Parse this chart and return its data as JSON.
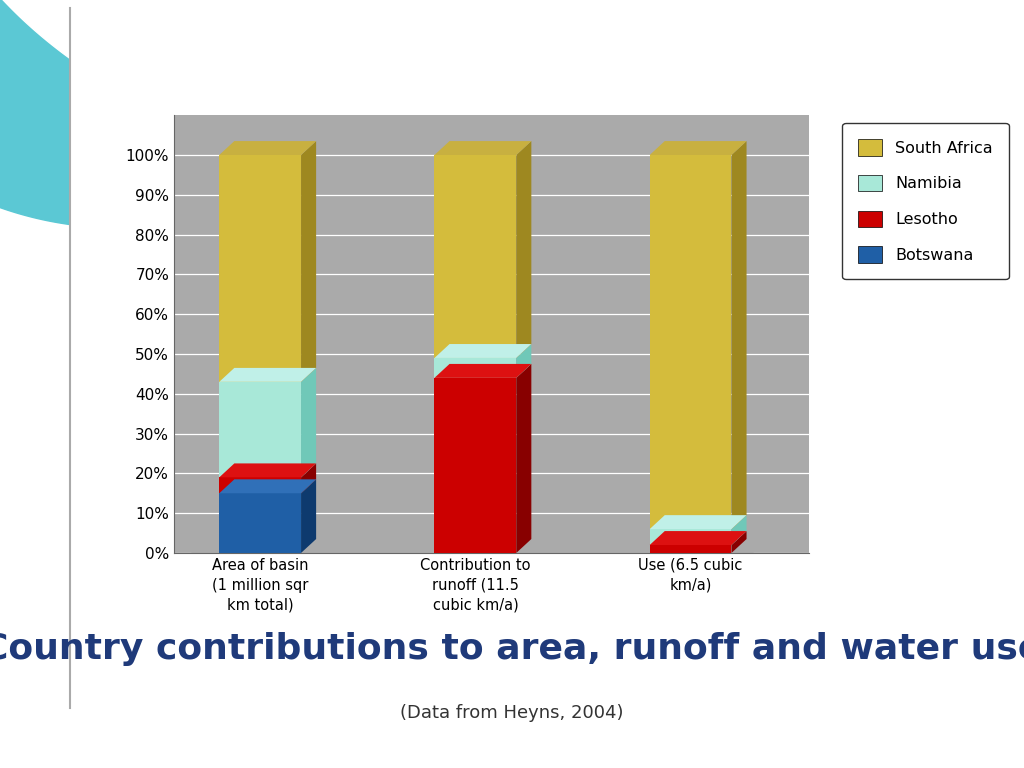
{
  "categories": [
    "Area of basin\n(1 million sqr\nkm total)",
    "Contribution to\nrunoff (11.5\ncubic km/a)",
    "Use (6.5 cubic\nkm/a)"
  ],
  "series": {
    "Botswana": [
      15,
      0,
      0
    ],
    "Lesotho": [
      4,
      44,
      2
    ],
    "Namibia": [
      24,
      5,
      4
    ],
    "South Africa": [
      57,
      51,
      94
    ]
  },
  "colors": {
    "Botswana": "#1F5FA6",
    "Lesotho": "#CC0000",
    "Namibia": "#A8E8D8",
    "South Africa": "#D4BC3C"
  },
  "colors_top": {
    "Botswana": "#3070B8",
    "Lesotho": "#DD1111",
    "Namibia": "#C0F0E8",
    "South Africa": "#C8B040"
  },
  "colors_side": {
    "Botswana": "#0E3A6E",
    "Lesotho": "#880000",
    "Namibia": "#70C8B8",
    "South Africa": "#9E8820"
  },
  "legend_order": [
    "South Africa",
    "Namibia",
    "Lesotho",
    "Botswana"
  ],
  "yticks": [
    0,
    10,
    20,
    30,
    40,
    50,
    60,
    70,
    80,
    90,
    100
  ],
  "ylim": [
    0,
    110
  ],
  "title": "Country contributions to area, runoff and water use",
  "subtitle": "(Data from Heyns, 2004)",
  "title_color": "#1F3A7A",
  "subtitle_color": "#333333",
  "title_fontsize": 26,
  "subtitle_fontsize": 13,
  "background_color": "#FFFFFF",
  "chart_bg_color": "#AAAAAA",
  "layer_order": [
    "Botswana",
    "Lesotho",
    "Namibia",
    "South Africa"
  ]
}
